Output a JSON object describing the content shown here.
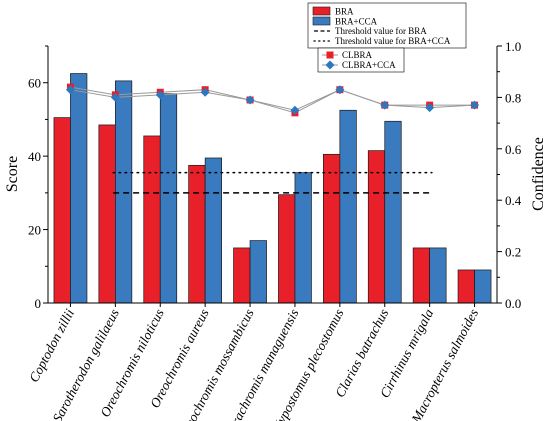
{
  "chart_data": {
    "type": "bar",
    "categories": [
      "Coptodon zillii",
      "Sarotherodon galilaeus",
      "Oreochromis niloticus",
      "Oreochromis aureus",
      "Oreochromis mossambicus",
      "Parachromis managuensis",
      "Hypostomus plecostomus",
      "Clarias batrachus",
      "Cirrhinus mrigala",
      "Macropterus salmoides"
    ],
    "series": [
      {
        "name": "BRA",
        "axis": "left",
        "kind": "bar",
        "color": "#e8202a",
        "values": [
          50.5,
          48.5,
          45.5,
          37.5,
          15,
          29.5,
          40.5,
          41.5,
          15,
          9
        ]
      },
      {
        "name": "BRA+CCA",
        "axis": "left",
        "kind": "bar",
        "color": "#3a7bbf",
        "values": [
          62.5,
          60.5,
          57,
          39.5,
          17,
          35.5,
          52.5,
          49.5,
          15,
          9
        ]
      },
      {
        "name": "CLBRA",
        "axis": "right",
        "kind": "line",
        "marker": "square",
        "color": "#e8202a",
        "values": [
          0.84,
          0.81,
          0.82,
          0.83,
          0.79,
          0.74,
          0.83,
          0.77,
          0.77,
          0.77
        ]
      },
      {
        "name": "CLBRA+CCA",
        "axis": "right",
        "kind": "line",
        "marker": "diamond",
        "color": "#2b77c0",
        "values": [
          0.83,
          0.8,
          0.81,
          0.82,
          0.79,
          0.75,
          0.83,
          0.77,
          0.76,
          0.77
        ]
      }
    ],
    "thresholds": [
      {
        "name": "Threshold value for BRA",
        "value": 30,
        "style": "dashed"
      },
      {
        "name": "Threshold value for BRA+CCA",
        "value": 35.5,
        "style": "dotted"
      }
    ],
    "ylabel": "Score",
    "y2label": "Confidence",
    "ylim": [
      0,
      70
    ],
    "y2lim": [
      0,
      1.0
    ],
    "yticks": [
      "0",
      "20",
      "40",
      "60"
    ],
    "y2ticks": [
      "0.0",
      "0.2",
      "0.4",
      "0.6",
      "0.8",
      "1.0"
    ],
    "grid": false,
    "legend_placement": "top-right"
  }
}
